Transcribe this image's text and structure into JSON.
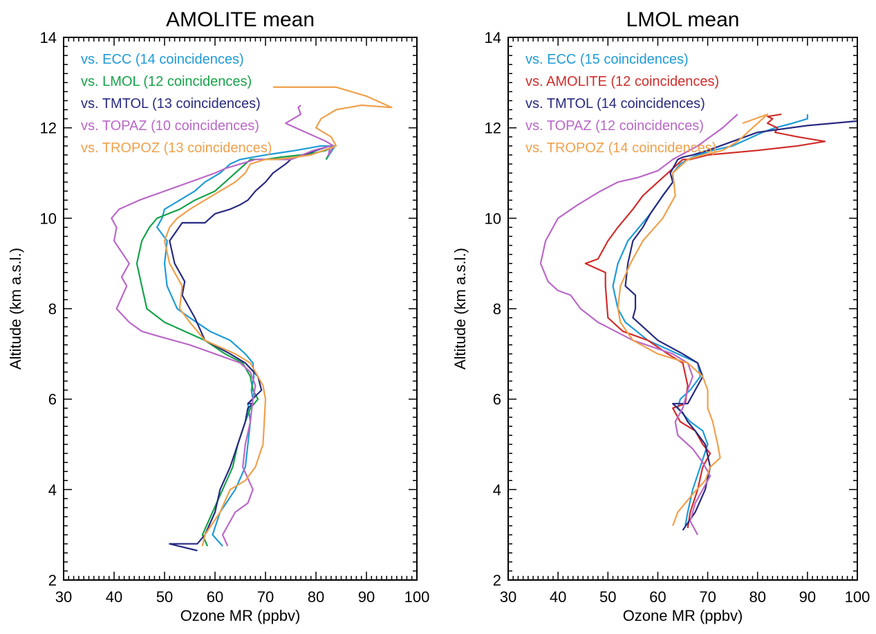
{
  "chart_data": [
    {
      "type": "line",
      "title": "AMOLITE mean",
      "xlabel": "Ozone MR (ppbv)",
      "ylabel": "Altitude (km a.s.l.)",
      "xlim": [
        30,
        100
      ],
      "ylim": [
        2,
        14
      ],
      "xticks": [
        "30",
        "40",
        "50",
        "60",
        "70",
        "80",
        "90",
        "100"
      ],
      "yticks": [
        "2",
        "4",
        "6",
        "8",
        "10",
        "12",
        "14"
      ],
      "legend_position": "top-left",
      "series": [
        {
          "name": "vs. ECC (14 coincidences)",
          "color": "#1E9BD7",
          "x": [
            61.5,
            59.5,
            61,
            64,
            66,
            66.5,
            67,
            66.5,
            67.5,
            67.2,
            67.7,
            67.5,
            66,
            63,
            59,
            55,
            52.5,
            50.5,
            50,
            50.5,
            48.5,
            49.5,
            50,
            53,
            56,
            58,
            61,
            63,
            65,
            67.5,
            70,
            73,
            76,
            78.5,
            81,
            83.8,
            82
          ],
          "y": [
            2.75,
            3,
            3.5,
            4,
            4.5,
            5,
            5.5,
            5.9,
            6,
            6.2,
            6.5,
            6.8,
            7,
            7.3,
            7.5,
            7.8,
            8,
            8.5,
            9,
            9.5,
            9.8,
            10,
            10.2,
            10.4,
            10.6,
            10.8,
            11,
            11.2,
            11.3,
            11.35,
            11.4,
            11.45,
            11.5,
            11.55,
            11.6,
            11.6,
            11.3
          ]
        },
        {
          "name": "vs. LMOL (12 coincidences)",
          "color": "#16A34A",
          "x": [
            58.5,
            57.5,
            59.5,
            61.5,
            63.5,
            64.5,
            66,
            67,
            68.5,
            67.5,
            67,
            65.5,
            62,
            58,
            54,
            50,
            46.5,
            45.5,
            44.5,
            45.5,
            47,
            48.5,
            53,
            56,
            60,
            62,
            64,
            67,
            70,
            73,
            77,
            80,
            82,
            83.5,
            82
          ],
          "y": [
            2.75,
            3,
            3.5,
            4,
            4.5,
            5,
            5.5,
            5.8,
            6,
            6.2,
            6.5,
            6.8,
            7,
            7.3,
            7.5,
            7.7,
            8,
            8.5,
            9,
            9.5,
            9.8,
            10,
            10.2,
            10.4,
            10.6,
            10.8,
            11,
            11.3,
            11.3,
            11.35,
            11.4,
            11.45,
            11.5,
            11.6,
            11.3
          ]
        },
        {
          "name": "vs. TMTOL (13 coincidences)",
          "color": "#282A80",
          "x": [
            56.5,
            51,
            56.5,
            58,
            60,
            61,
            63,
            64.5,
            66,
            66.5,
            67.5,
            66.5,
            69.2,
            68.5,
            66,
            63,
            58,
            56,
            53.5,
            54,
            52,
            51,
            53.5,
            58,
            60,
            63,
            65,
            66.5,
            68,
            70,
            71.5,
            74,
            75,
            77.5,
            80,
            82.8
          ],
          "y": [
            2.65,
            2.8,
            2.8,
            3,
            3.5,
            4,
            4.5,
            5,
            5.5,
            5.8,
            5.9,
            5.9,
            6.2,
            6.5,
            6.8,
            7,
            7.3,
            7.8,
            8.3,
            8.6,
            9,
            9.5,
            9.9,
            9.9,
            10.1,
            10.2,
            10.3,
            10.4,
            10.6,
            10.8,
            11,
            11.2,
            11.3,
            11.4,
            11.5,
            11.6
          ]
        },
        {
          "name": "vs. TOPAZ (10 coincidences)",
          "color": "#BA68C8",
          "x": [
            62.5,
            61.5,
            64,
            66.5,
            67.5,
            65.5,
            66,
            67,
            67.5,
            68,
            67,
            65,
            60,
            55,
            48.5,
            45.5,
            43,
            40.5,
            42.5,
            41.5,
            43,
            40,
            40.5,
            39.5,
            41,
            45,
            50,
            55,
            60,
            62,
            65,
            68,
            75,
            79.5,
            82.8,
            82.5,
            83.5,
            82,
            80,
            78,
            76,
            74,
            77,
            76.5,
            77
          ],
          "y": [
            2.75,
            3,
            3.5,
            3.7,
            4,
            4.5,
            5,
            5.5,
            6,
            6.3,
            6.6,
            6.8,
            7,
            7.2,
            7.4,
            7.5,
            7.7,
            8,
            8.5,
            8.7,
            9,
            9.5,
            9.8,
            10,
            10.2,
            10.4,
            10.6,
            10.8,
            11,
            11.1,
            11.2,
            11.3,
            11.3,
            11.5,
            11.6,
            11.4,
            11.6,
            11.7,
            11.8,
            11.9,
            12,
            12.1,
            12.3,
            12.45,
            12.5
          ]
        },
        {
          "name": "vs. TROPOZ (13 coincidences)",
          "color": "#F0A04B",
          "x": [
            57.5,
            58,
            61,
            63,
            66,
            68,
            69.5,
            70,
            69.5,
            68.5,
            67,
            64,
            58,
            55,
            53,
            53.5,
            51,
            50,
            51,
            52.5,
            55,
            58,
            61,
            64,
            66,
            67,
            70,
            72,
            76,
            79,
            84,
            83,
            80,
            81,
            84,
            89,
            95,
            90,
            84,
            80,
            71.5
          ],
          "y": [
            2.75,
            3,
            3.5,
            4,
            4.2,
            4.5,
            5,
            6,
            6.3,
            6.5,
            6.8,
            7,
            7.3,
            7.7,
            8,
            8.5,
            9,
            9.5,
            9.8,
            10,
            10.2,
            10.4,
            10.6,
            10.8,
            11,
            11.2,
            11.3,
            11.3,
            11.35,
            11.4,
            11.6,
            11.8,
            12,
            12.2,
            12.4,
            12.5,
            12.45,
            12.7,
            12.9,
            12.9,
            12.9
          ]
        }
      ]
    },
    {
      "type": "line",
      "title": "LMOL mean",
      "xlabel": "Ozone MR (ppbv)",
      "ylabel": "Altitude (km a.s.l.)",
      "xlim": [
        30,
        100
      ],
      "ylim": [
        2,
        14
      ],
      "xticks": [
        "30",
        "40",
        "50",
        "60",
        "70",
        "80",
        "90",
        "100"
      ],
      "yticks": [
        "2",
        "4",
        "6",
        "8",
        "10",
        "12",
        "14"
      ],
      "legend_position": "top-left",
      "series": [
        {
          "name": "vs. ECC (15 coincidences)",
          "color": "#1E9BD7",
          "x": [
            65.5,
            66,
            67,
            68.5,
            70,
            69,
            66.5,
            64,
            64.5,
            66.5,
            68.5,
            68,
            64,
            58,
            53.5,
            52,
            51,
            52,
            54,
            57,
            58.5,
            61,
            63,
            63,
            64.5,
            66,
            68,
            71,
            75,
            77,
            79,
            81,
            83.5,
            87,
            90,
            90
          ],
          "y": [
            3.2,
            3.5,
            4,
            4.5,
            5,
            5.3,
            5.5,
            5.8,
            6,
            6.2,
            6.5,
            6.8,
            7,
            7.3,
            7.7,
            8,
            8.5,
            9,
            9.5,
            9.9,
            10.1,
            10.5,
            10.8,
            11,
            11.2,
            11.3,
            11.4,
            11.5,
            11.6,
            11.7,
            11.8,
            11.9,
            12,
            12.1,
            12.2,
            12.3
          ]
        },
        {
          "name": "vs. AMOLITE (12 coincidences)",
          "color": "#D02D2A",
          "x": [
            66,
            66.5,
            68,
            69,
            70.5,
            69,
            67.5,
            64.5,
            63,
            65.5,
            66,
            65,
            62,
            58,
            53,
            50,
            49.5,
            49.5,
            45.5,
            48,
            50,
            52,
            55,
            57,
            60,
            62,
            63,
            65,
            66.5,
            70,
            80,
            88,
            93.5,
            88,
            83.5,
            84,
            82,
            83,
            82,
            84.8
          ],
          "y": [
            3.15,
            3.5,
            4,
            4.5,
            4.8,
            5,
            5.3,
            5.5,
            5.8,
            5.9,
            6.3,
            6.8,
            7,
            7.3,
            7.5,
            7.8,
            8.5,
            8.8,
            9,
            9.1,
            9.5,
            9.8,
            10.2,
            10.5,
            10.8,
            11,
            11.1,
            11.3,
            11.3,
            11.4,
            11.5,
            11.6,
            11.7,
            11.8,
            11.9,
            12,
            12.1,
            12.2,
            12.25,
            12.3
          ]
        },
        {
          "name": "vs. TMTOL (14 coincidences)",
          "color": "#282A80",
          "x": [
            65,
            67.5,
            69.5,
            70.5,
            69.5,
            67.5,
            66,
            65,
            63,
            66,
            66.5,
            69,
            68,
            65,
            60,
            57,
            55,
            55.5,
            55.5,
            53.5,
            54,
            55,
            57,
            58.5,
            61,
            63,
            62.5,
            64,
            65,
            67,
            70,
            75,
            80,
            90,
            100
          ],
          "y": [
            3.1,
            3.5,
            4,
            4.5,
            5,
            5.3,
            5.5,
            5.7,
            5.9,
            5.9,
            6,
            6.5,
            6.8,
            7,
            7.3,
            7.6,
            7.8,
            8,
            8.3,
            8.5,
            9,
            9.5,
            9.8,
            10.1,
            10.5,
            10.8,
            11,
            11.3,
            11.35,
            11.4,
            11.5,
            11.7,
            11.9,
            12.05,
            12.15
          ]
        },
        {
          "name": "vs. TOPAZ (12 coincidences)",
          "color": "#BA68C8",
          "x": [
            68,
            66.5,
            67.5,
            69,
            70.5,
            69,
            67,
            64,
            63.5,
            65,
            66,
            67,
            66,
            63,
            55,
            48,
            44.5,
            42.5,
            40,
            38,
            36.5,
            37.5,
            40,
            44,
            48.5,
            52,
            56,
            60,
            63,
            68,
            73,
            76
          ],
          "y": [
            3,
            3.3,
            3.7,
            4,
            4.3,
            4.6,
            4.9,
            5.2,
            5.5,
            5.8,
            6.2,
            6.5,
            6.8,
            7,
            7.3,
            7.7,
            8,
            8.3,
            8.4,
            8.6,
            9,
            9.5,
            10,
            10.3,
            10.6,
            10.8,
            10.9,
            11.05,
            11.3,
            11.6,
            12,
            12.3
          ]
        },
        {
          "name": "vs. TROPOZ (14 coincidences)",
          "color": "#F0A04B",
          "x": [
            63,
            64,
            67,
            69.5,
            70.5,
            72.5,
            72,
            71,
            70,
            70,
            69,
            66,
            60,
            55,
            52.5,
            52,
            52.5,
            54.5,
            57,
            61,
            63.5,
            63,
            66,
            69,
            73,
            76,
            79,
            82,
            77
          ],
          "y": [
            3.2,
            3.5,
            3.9,
            4.2,
            4.5,
            4.7,
            5,
            5.5,
            5.8,
            6.2,
            6.5,
            6.8,
            7,
            7.3,
            7.7,
            8,
            8.5,
            9,
            9.5,
            10,
            10.5,
            11,
            11.3,
            11.4,
            11.5,
            11.7,
            12,
            12.3,
            12.1
          ]
        }
      ]
    }
  ]
}
